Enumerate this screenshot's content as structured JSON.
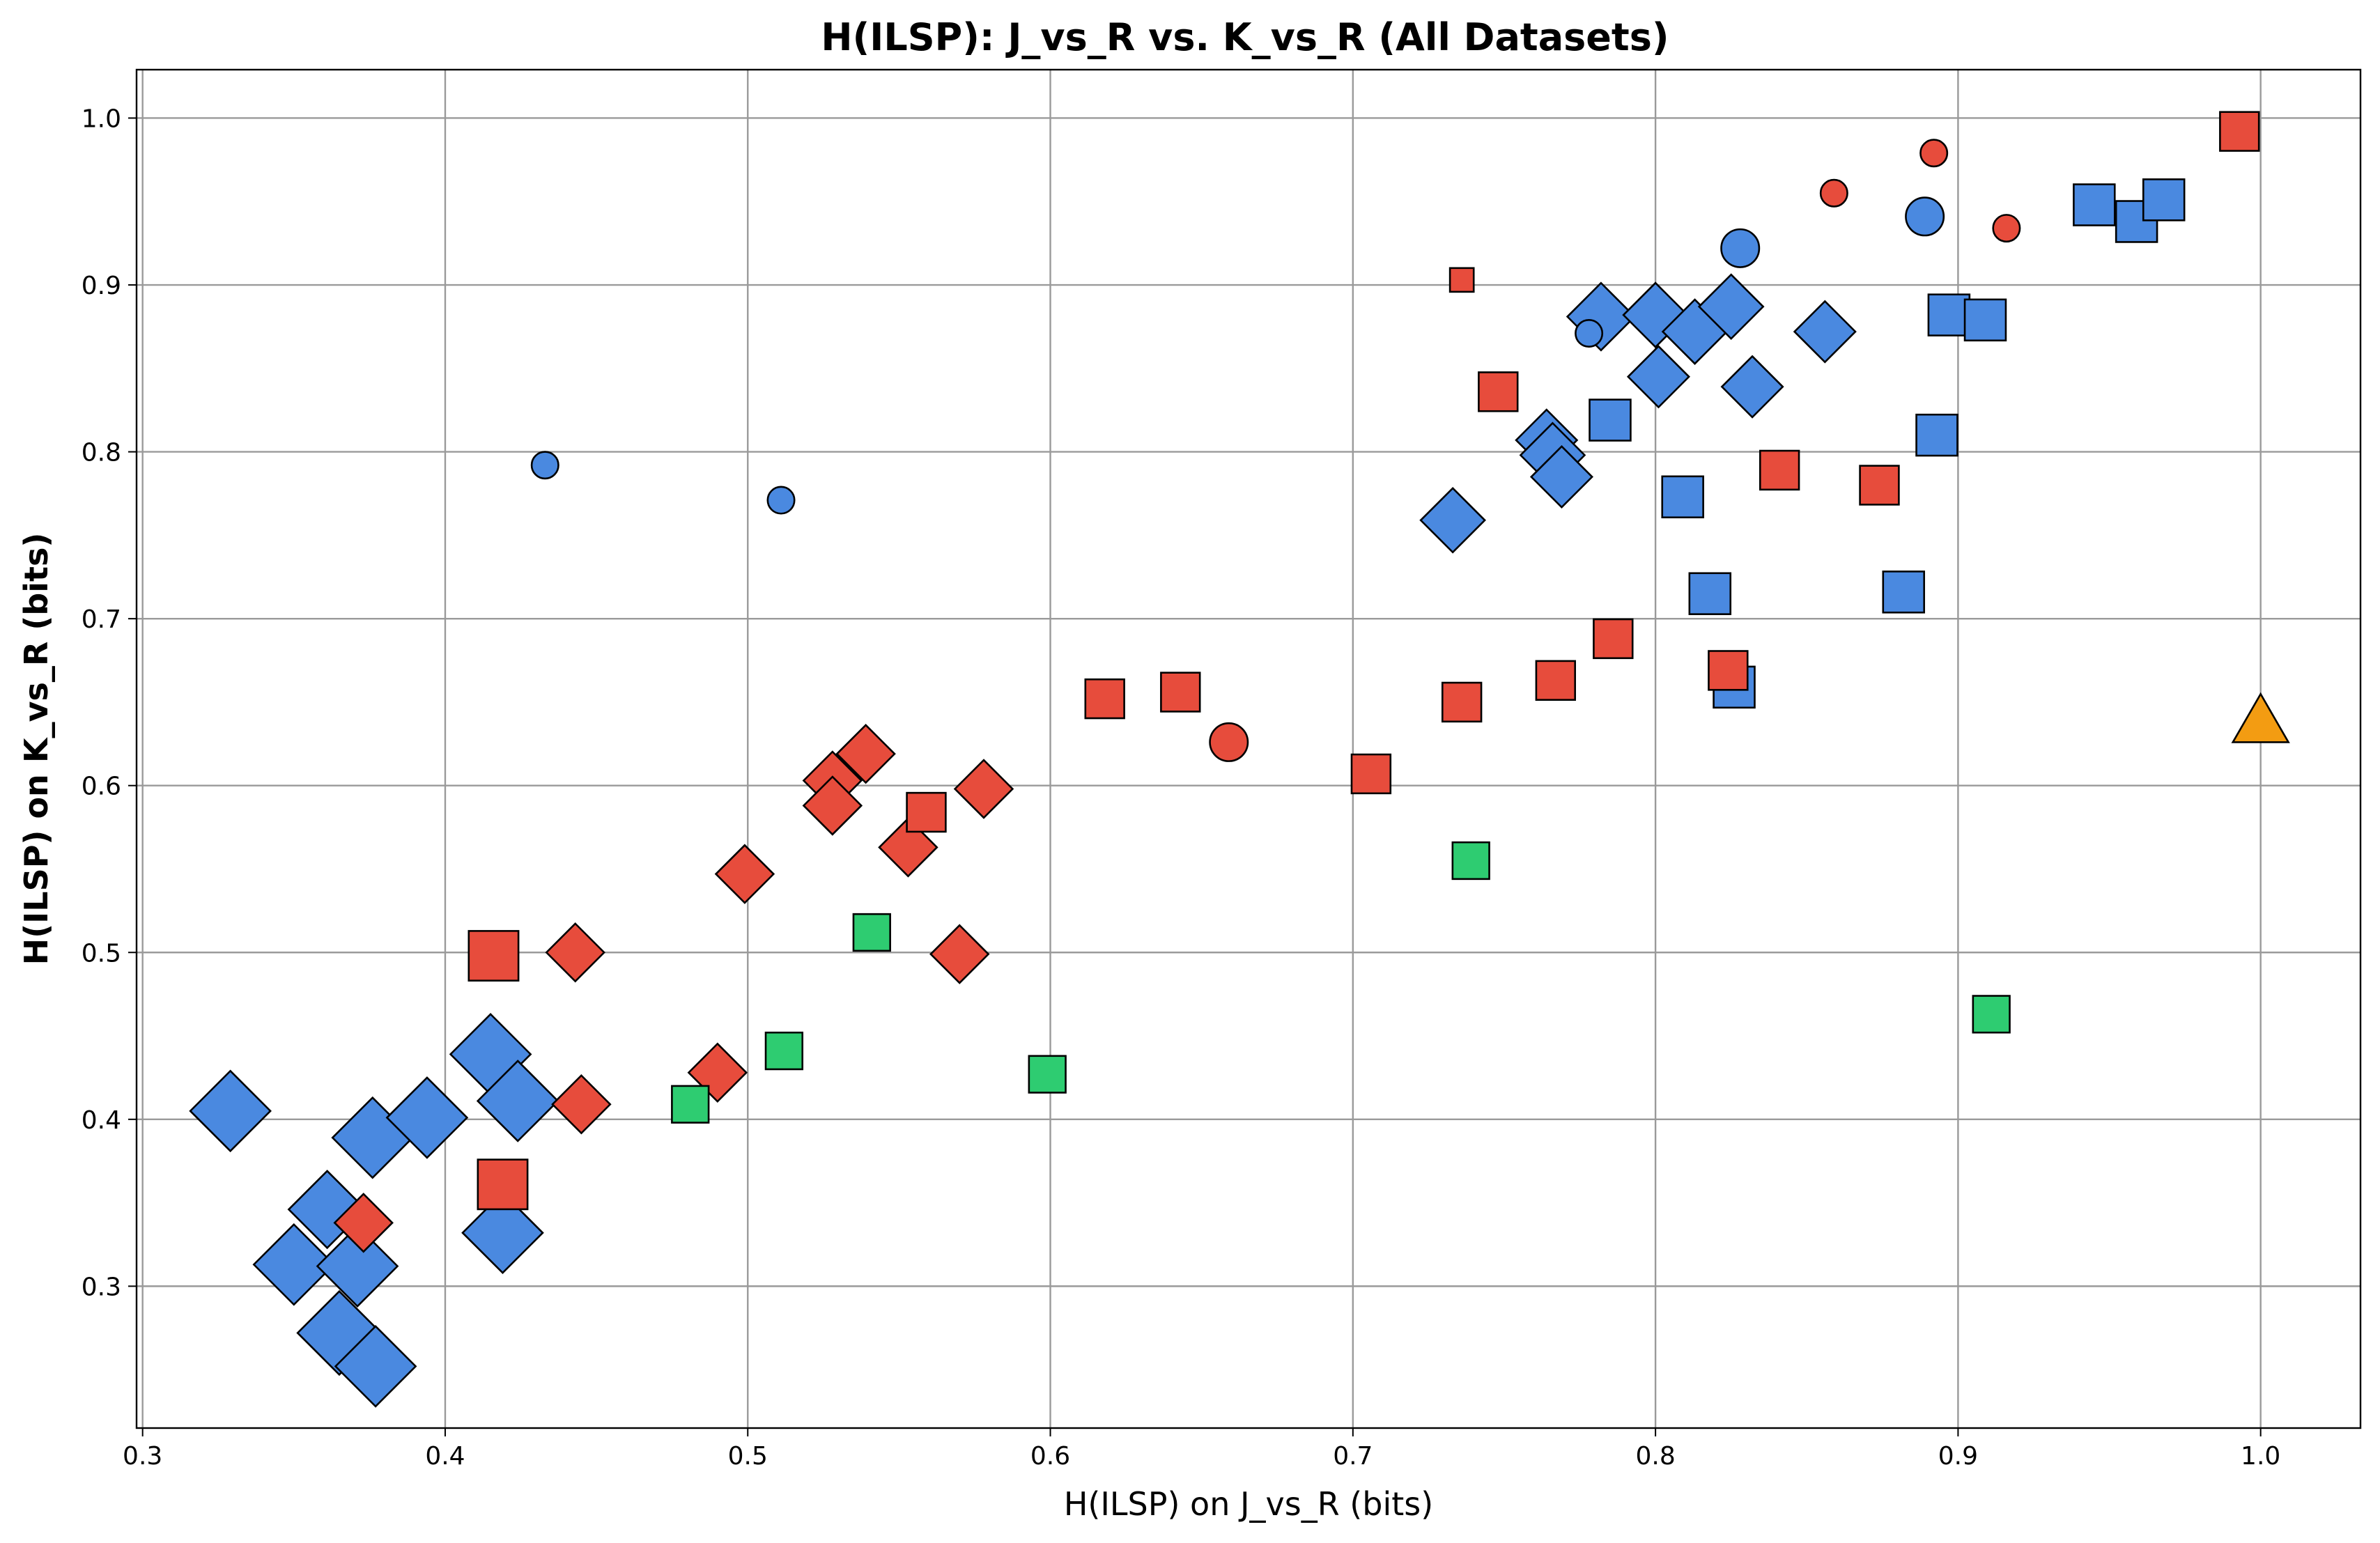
{
  "chart_data": {
    "type": "scatter",
    "title": "H(ILSP): J_vs_R vs. K_vs_R (All Datasets)",
    "xlabel": "H(ILSP) on J_vs_R (bits)",
    "ylabel": "H(ILSP) on K_vs_R (bits)",
    "xlim": [
      0.298,
      1.033
    ],
    "ylim": [
      0.215,
      1.029
    ],
    "xticks": [
      "0.3",
      "0.4",
      "0.5",
      "0.6",
      "0.7",
      "0.8",
      "0.9",
      "1.0"
    ],
    "yticks": [
      "0.3",
      "0.4",
      "0.5",
      "0.6",
      "0.7",
      "0.8",
      "0.9",
      "1.0"
    ],
    "grid": true,
    "colors": {
      "blue": "#4a89e0",
      "red": "#e74c3c",
      "green": "#2ecc71",
      "orange": "#f39c12"
    },
    "points": [
      {
        "x": 0.329,
        "y": 0.405,
        "shape": "diamond",
        "color": "blue",
        "size": 1.25
      },
      {
        "x": 0.35,
        "y": 0.313,
        "shape": "diamond",
        "color": "blue",
        "size": 1.25
      },
      {
        "x": 0.361,
        "y": 0.346,
        "shape": "diamond",
        "color": "blue",
        "size": 1.2
      },
      {
        "x": 0.365,
        "y": 0.272,
        "shape": "diamond",
        "color": "blue",
        "size": 1.3
      },
      {
        "x": 0.371,
        "y": 0.312,
        "shape": "diamond",
        "color": "blue",
        "size": 1.25
      },
      {
        "x": 0.376,
        "y": 0.389,
        "shape": "diamond",
        "color": "blue",
        "size": 1.25
      },
      {
        "x": 0.377,
        "y": 0.252,
        "shape": "diamond",
        "color": "blue",
        "size": 1.25
      },
      {
        "x": 0.394,
        "y": 0.401,
        "shape": "diamond",
        "color": "blue",
        "size": 1.25
      },
      {
        "x": 0.415,
        "y": 0.439,
        "shape": "diamond",
        "color": "blue",
        "size": 1.25
      },
      {
        "x": 0.419,
        "y": 0.332,
        "shape": "diamond",
        "color": "blue",
        "size": 1.25
      },
      {
        "x": 0.424,
        "y": 0.411,
        "shape": "diamond",
        "color": "blue",
        "size": 1.25
      },
      {
        "x": 0.733,
        "y": 0.759,
        "shape": "diamond",
        "color": "blue",
        "size": 1.0
      },
      {
        "x": 0.764,
        "y": 0.807,
        "shape": "diamond",
        "color": "blue",
        "size": 0.95
      },
      {
        "x": 0.766,
        "y": 0.798,
        "shape": "diamond",
        "color": "blue",
        "size": 1.0
      },
      {
        "x": 0.769,
        "y": 0.785,
        "shape": "diamond",
        "color": "blue",
        "size": 0.95
      },
      {
        "x": 0.782,
        "y": 0.881,
        "shape": "diamond",
        "color": "blue",
        "size": 1.05
      },
      {
        "x": 0.8,
        "y": 0.882,
        "shape": "diamond",
        "color": "blue",
        "size": 1.0
      },
      {
        "x": 0.801,
        "y": 0.845,
        "shape": "diamond",
        "color": "blue",
        "size": 0.95
      },
      {
        "x": 0.813,
        "y": 0.872,
        "shape": "diamond",
        "color": "blue",
        "size": 1.0
      },
      {
        "x": 0.825,
        "y": 0.887,
        "shape": "diamond",
        "color": "blue",
        "size": 1.0
      },
      {
        "x": 0.832,
        "y": 0.839,
        "shape": "diamond",
        "color": "blue",
        "size": 0.95
      },
      {
        "x": 0.856,
        "y": 0.872,
        "shape": "diamond",
        "color": "blue",
        "size": 0.95
      },
      {
        "x": 0.373,
        "y": 0.338,
        "shape": "diamond",
        "color": "red",
        "size": 0.9
      },
      {
        "x": 0.443,
        "y": 0.5,
        "shape": "diamond",
        "color": "red",
        "size": 0.9
      },
      {
        "x": 0.445,
        "y": 0.409,
        "shape": "diamond",
        "color": "red",
        "size": 0.9
      },
      {
        "x": 0.49,
        "y": 0.428,
        "shape": "diamond",
        "color": "red",
        "size": 0.9
      },
      {
        "x": 0.499,
        "y": 0.547,
        "shape": "diamond",
        "color": "red",
        "size": 0.9
      },
      {
        "x": 0.528,
        "y": 0.603,
        "shape": "diamond",
        "color": "red",
        "size": 0.9
      },
      {
        "x": 0.528,
        "y": 0.588,
        "shape": "diamond",
        "color": "red",
        "size": 0.9
      },
      {
        "x": 0.539,
        "y": 0.619,
        "shape": "diamond",
        "color": "red",
        "size": 0.9
      },
      {
        "x": 0.553,
        "y": 0.563,
        "shape": "diamond",
        "color": "red",
        "size": 0.9
      },
      {
        "x": 0.57,
        "y": 0.499,
        "shape": "diamond",
        "color": "red",
        "size": 0.9
      },
      {
        "x": 0.578,
        "y": 0.598,
        "shape": "diamond",
        "color": "red",
        "size": 0.9
      },
      {
        "x": 0.785,
        "y": 0.819,
        "shape": "square",
        "color": "blue",
        "size": 0.95
      },
      {
        "x": 0.809,
        "y": 0.773,
        "shape": "square",
        "color": "blue",
        "size": 0.95
      },
      {
        "x": 0.818,
        "y": 0.715,
        "shape": "square",
        "color": "blue",
        "size": 0.95
      },
      {
        "x": 0.826,
        "y": 0.659,
        "shape": "square",
        "color": "blue",
        "size": 0.95
      },
      {
        "x": 0.882,
        "y": 0.716,
        "shape": "square",
        "color": "blue",
        "size": 0.95
      },
      {
        "x": 0.893,
        "y": 0.81,
        "shape": "square",
        "color": "blue",
        "size": 0.95
      },
      {
        "x": 0.897,
        "y": 0.882,
        "shape": "square",
        "color": "blue",
        "size": 0.95
      },
      {
        "x": 0.909,
        "y": 0.879,
        "shape": "square",
        "color": "blue",
        "size": 0.95
      },
      {
        "x": 0.945,
        "y": 0.948,
        "shape": "square",
        "color": "blue",
        "size": 0.95
      },
      {
        "x": 0.959,
        "y": 0.938,
        "shape": "square",
        "color": "blue",
        "size": 0.95
      },
      {
        "x": 0.968,
        "y": 0.951,
        "shape": "square",
        "color": "blue",
        "size": 0.95
      },
      {
        "x": 0.416,
        "y": 0.498,
        "shape": "square",
        "color": "red",
        "size": 1.15
      },
      {
        "x": 0.419,
        "y": 0.361,
        "shape": "square",
        "color": "red",
        "size": 1.15
      },
      {
        "x": 0.559,
        "y": 0.584,
        "shape": "square",
        "color": "red",
        "size": 0.9
      },
      {
        "x": 0.618,
        "y": 0.652,
        "shape": "square",
        "color": "red",
        "size": 0.9
      },
      {
        "x": 0.643,
        "y": 0.656,
        "shape": "square",
        "color": "red",
        "size": 0.9
      },
      {
        "x": 0.706,
        "y": 0.607,
        "shape": "square",
        "color": "red",
        "size": 0.9
      },
      {
        "x": 0.736,
        "y": 0.903,
        "shape": "square",
        "color": "red",
        "size": 0.55
      },
      {
        "x": 0.736,
        "y": 0.65,
        "shape": "square",
        "color": "red",
        "size": 0.9
      },
      {
        "x": 0.748,
        "y": 0.836,
        "shape": "square",
        "color": "red",
        "size": 0.9
      },
      {
        "x": 0.767,
        "y": 0.663,
        "shape": "square",
        "color": "red",
        "size": 0.9
      },
      {
        "x": 0.786,
        "y": 0.688,
        "shape": "square",
        "color": "red",
        "size": 0.9
      },
      {
        "x": 0.824,
        "y": 0.669,
        "shape": "square",
        "color": "red",
        "size": 0.9
      },
      {
        "x": 0.841,
        "y": 0.789,
        "shape": "square",
        "color": "red",
        "size": 0.9
      },
      {
        "x": 0.874,
        "y": 0.78,
        "shape": "square",
        "color": "red",
        "size": 0.9
      },
      {
        "x": 0.993,
        "y": 0.992,
        "shape": "square",
        "color": "red",
        "size": 0.9
      },
      {
        "x": 0.481,
        "y": 0.409,
        "shape": "square",
        "color": "green",
        "size": 0.85
      },
      {
        "x": 0.512,
        "y": 0.441,
        "shape": "square",
        "color": "green",
        "size": 0.85
      },
      {
        "x": 0.541,
        "y": 0.512,
        "shape": "square",
        "color": "green",
        "size": 0.85
      },
      {
        "x": 0.599,
        "y": 0.427,
        "shape": "square",
        "color": "green",
        "size": 0.85
      },
      {
        "x": 0.739,
        "y": 0.555,
        "shape": "square",
        "color": "green",
        "size": 0.85
      },
      {
        "x": 0.911,
        "y": 0.463,
        "shape": "square",
        "color": "green",
        "size": 0.85
      },
      {
        "x": 0.433,
        "y": 0.792,
        "shape": "circle",
        "color": "blue",
        "size": 0.6
      },
      {
        "x": 0.511,
        "y": 0.771,
        "shape": "circle",
        "color": "blue",
        "size": 0.6
      },
      {
        "x": 0.778,
        "y": 0.871,
        "shape": "circle",
        "color": "blue",
        "size": 0.6
      },
      {
        "x": 0.828,
        "y": 0.922,
        "shape": "circle",
        "color": "blue",
        "size": 0.85
      },
      {
        "x": 0.889,
        "y": 0.941,
        "shape": "circle",
        "color": "blue",
        "size": 0.85
      },
      {
        "x": 0.659,
        "y": 0.626,
        "shape": "circle",
        "color": "red",
        "size": 0.85
      },
      {
        "x": 0.859,
        "y": 0.955,
        "shape": "circle",
        "color": "red",
        "size": 0.6
      },
      {
        "x": 0.892,
        "y": 0.979,
        "shape": "circle",
        "color": "red",
        "size": 0.6
      },
      {
        "x": 0.916,
        "y": 0.934,
        "shape": "circle",
        "color": "red",
        "size": 0.6
      },
      {
        "x": 1.0,
        "y": 0.639,
        "shape": "triangle",
        "color": "orange",
        "size": 1.0
      }
    ]
  }
}
